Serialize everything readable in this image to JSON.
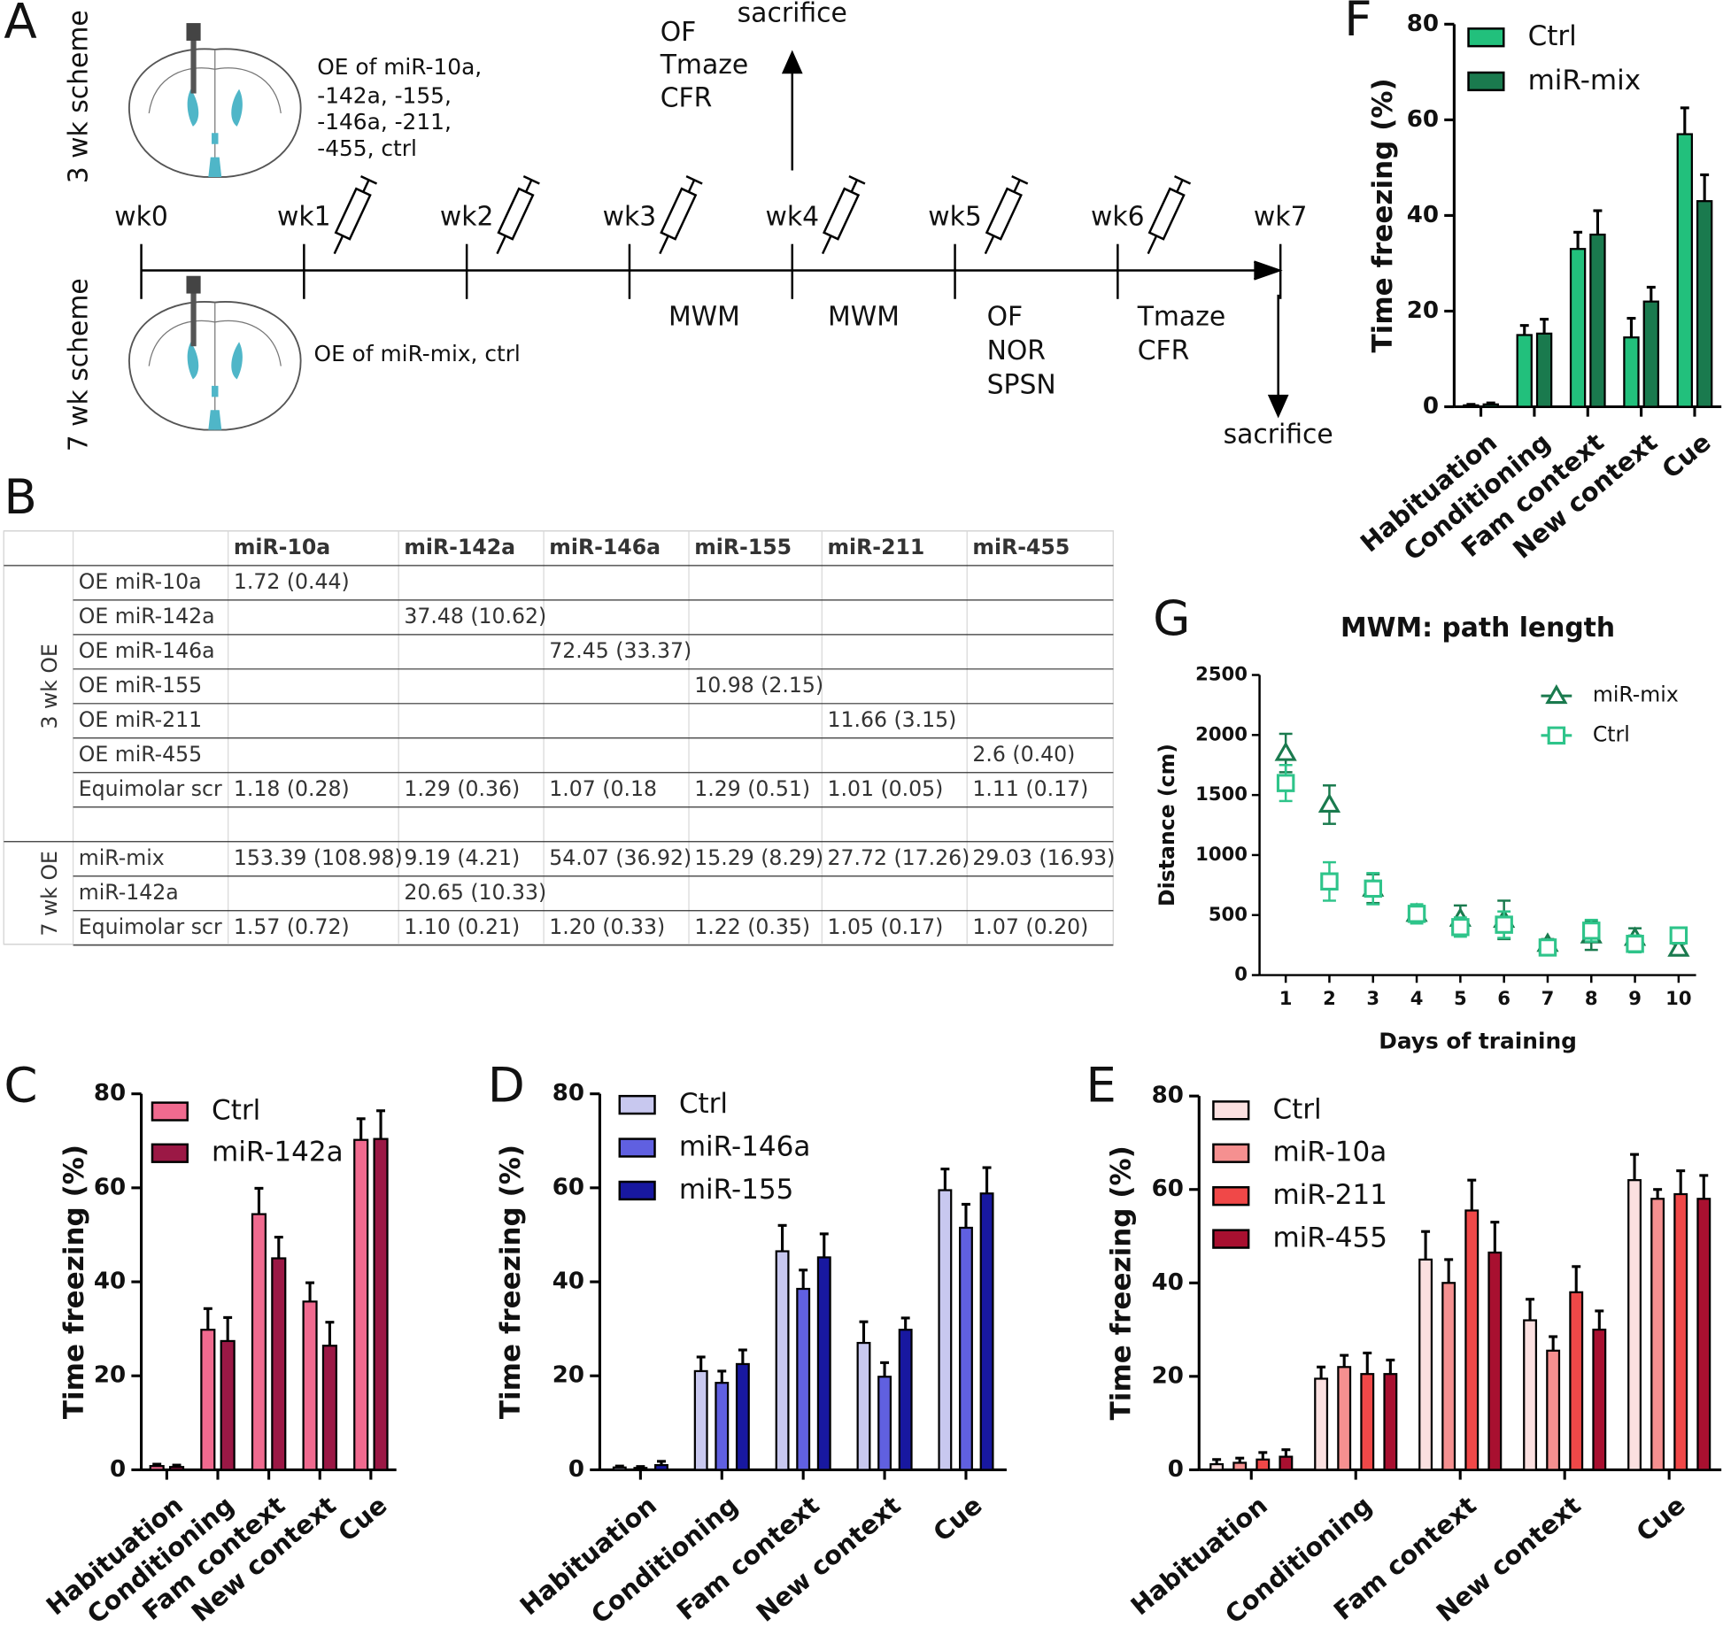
{
  "diagram": {
    "letter": "A",
    "schemes": [
      "3 wk scheme",
      "7 wk scheme"
    ],
    "oe_3wk": [
      "OE of miR-10a,",
      "-142a, -155,",
      "-146a, -211,",
      "-455, ctrl"
    ],
    "oe_7wk": "OE of miR-mix, ctrl",
    "weeks": [
      "wk0",
      "wk1",
      "wk2",
      "wk3",
      "wk4",
      "wk5",
      "wk6",
      "wk7"
    ],
    "above_wk4": [
      "OF",
      "Tmaze",
      "CFR"
    ],
    "sacrifice_top": "sacrifice",
    "below": [
      [
        "MWM"
      ],
      [
        "MWM"
      ],
      [
        "OF",
        "NOR",
        "SPSN"
      ],
      [
        "Tmaze",
        "CFR"
      ]
    ],
    "sacrifice_bottom": "sacrifice"
  },
  "table": {
    "letter": "B",
    "header": [
      "miR-10a",
      "miR-142a",
      "miR-146a",
      "miR-155",
      "miR-211",
      "miR-455"
    ],
    "groups": [
      {
        "label": "3 wk OE",
        "rows": [
          {
            "label": "OE miR-10a",
            "cells": [
              "1.72 (0.44)",
              null,
              null,
              null,
              null,
              null
            ]
          },
          {
            "label": "OE miR-142a",
            "cells": [
              null,
              "37.48 (10.62)",
              null,
              null,
              null,
              null
            ]
          },
          {
            "label": "OE miR-146a",
            "cells": [
              null,
              null,
              "72.45 (33.37)",
              null,
              null,
              null
            ]
          },
          {
            "label": "OE miR-155",
            "cells": [
              null,
              null,
              null,
              "10.98 (2.15)",
              null,
              null
            ]
          },
          {
            "label": "OE miR-211",
            "cells": [
              null,
              null,
              null,
              null,
              "11.66 (3.15)",
              null
            ]
          },
          {
            "label": "OE miR-455",
            "cells": [
              null,
              null,
              null,
              null,
              null,
              "2.6 (0.40)"
            ]
          },
          {
            "label": "Equimolar scr",
            "cells": [
              "1.18 (0.28)",
              "1.29 (0.36)",
              "1.07 (0.18",
              "1.29 (0.51)",
              "1.01 (0.05)",
              "1.11 (0.17)"
            ]
          }
        ]
      },
      {
        "label": "7 wk OE",
        "rows": [
          {
            "label": "miR-mix",
            "cells": [
              "153.39 (108.98)",
              "9.19 (4.21)",
              "54.07 (36.92)",
              "15.29 (8.29)",
              "27.72 (17.26)",
              "29.03 (16.93)"
            ]
          },
          {
            "label": "miR-142a",
            "cells": [
              null,
              "20.65 (10.33)",
              null,
              null,
              null,
              null
            ]
          },
          {
            "label": "Equimolar scr",
            "cells": [
              "1.57 (0.72)",
              "1.10 (0.21)",
              "1.20 (0.33)",
              "1.22 (0.35)",
              "1.05 (0.17)",
              "1.07 (0.20)"
            ]
          }
        ]
      }
    ]
  },
  "chart_data": [
    {
      "type": "bar",
      "letter": "F",
      "ylabel": "Time freezing (%)",
      "categories": [
        "Habituation",
        "Conditioning",
        "Fam context",
        "New context",
        "Cue"
      ],
      "ylim": [
        0,
        80
      ],
      "yticks": [
        0,
        20,
        40,
        60,
        80
      ],
      "series": [
        {
          "name": "Ctrl",
          "color": "#22c07c",
          "values": [
            0.3,
            15,
            33,
            14.5,
            57
          ],
          "errors": [
            0.2,
            2,
            3.5,
            4,
            5.5
          ]
        },
        {
          "name": "miR-mix",
          "color": "#1a7a4e",
          "values": [
            0.5,
            15.3,
            36,
            22,
            43
          ],
          "errors": [
            0.3,
            3,
            5,
            3,
            5.5
          ]
        }
      ]
    },
    {
      "type": "line",
      "letter": "G",
      "title": "MWM: path length",
      "xlabel": "Days of training",
      "ylabel": "Distance (cm)",
      "x": [
        1,
        2,
        3,
        4,
        5,
        6,
        7,
        8,
        9,
        10
      ],
      "xlim": [
        0.4,
        10.4
      ],
      "xticks": [
        1,
        2,
        3,
        4,
        5,
        6,
        7,
        8,
        9,
        10
      ],
      "ylim": [
        0,
        2500
      ],
      "yticks": [
        0,
        500,
        1000,
        1500,
        2000,
        2500
      ],
      "series": [
        {
          "name": "miR-mix",
          "color": "#1a7a4e",
          "marker": "triangle",
          "values": [
            1850,
            1420,
            720,
            510,
            470,
            460,
            260,
            330,
            310,
            220
          ],
          "errors": [
            160,
            160,
            120,
            70,
            110,
            160,
            40,
            120,
            80,
            40
          ]
        },
        {
          "name": "Ctrl",
          "color": "#2ec48a",
          "marker": "square",
          "values": [
            1600,
            780,
            720,
            510,
            400,
            420,
            230,
            370,
            260,
            330
          ],
          "errors": [
            150,
            160,
            130,
            80,
            80,
            110,
            40,
            90,
            70,
            60
          ]
        }
      ]
    },
    {
      "type": "bar",
      "letter": "C",
      "ylabel": "Time freezing (%)",
      "categories": [
        "Habituation",
        "Conditioning",
        "Fam context",
        "New context",
        "Cue"
      ],
      "ylim": [
        0,
        80
      ],
      "yticks": [
        0,
        20,
        40,
        60,
        80
      ],
      "series": [
        {
          "name": "Ctrl",
          "color": "#f06a8f",
          "values": [
            0.8,
            29.8,
            54.4,
            35.8,
            70.2
          ],
          "errors": [
            0.4,
            4.5,
            5.5,
            4,
            4.5
          ]
        },
        {
          "name": "miR-142a",
          "color": "#9b1845",
          "values": [
            0.6,
            27.4,
            45,
            26.4,
            70.4
          ],
          "errors": [
            0.4,
            5,
            4.5,
            5,
            6
          ]
        }
      ]
    },
    {
      "type": "bar",
      "letter": "D",
      "ylabel": "Time freezing (%)",
      "categories": [
        "Habituation",
        "Conditioning",
        "Fam context",
        "New context",
        "Cue"
      ],
      "ylim": [
        0,
        80
      ],
      "yticks": [
        0,
        20,
        40,
        60,
        80
      ],
      "series": [
        {
          "name": "Ctrl",
          "color": "#c8c8ef",
          "values": [
            0.5,
            21,
            46.5,
            27,
            59.5
          ],
          "errors": [
            0.3,
            3,
            5.5,
            4.5,
            4.5
          ]
        },
        {
          "name": "miR-146a",
          "color": "#6060e0",
          "values": [
            0.4,
            18.5,
            38.5,
            19.8,
            51.5
          ],
          "errors": [
            0.3,
            2.5,
            4,
            3,
            5
          ]
        },
        {
          "name": "miR-155",
          "color": "#1818a0",
          "values": [
            1,
            22.5,
            45.2,
            29.8,
            58.8
          ],
          "errors": [
            0.8,
            3,
            5,
            2.5,
            5.5
          ]
        }
      ]
    },
    {
      "type": "bar",
      "letter": "E",
      "ylabel": "Time freezing (%)",
      "categories": [
        "Habituation",
        "Conditioning",
        "Fam context",
        "New context",
        "Cue"
      ],
      "ylim": [
        0,
        80
      ],
      "yticks": [
        0,
        20,
        40,
        60,
        80
      ],
      "series": [
        {
          "name": "Ctrl",
          "color": "#fbe0e0",
          "values": [
            1.2,
            19.5,
            45,
            32,
            62
          ],
          "errors": [
            1,
            2.5,
            6,
            4.5,
            5.5
          ]
        },
        {
          "name": "miR-10a",
          "color": "#f59090",
          "values": [
            1.5,
            22,
            40,
            25.5,
            58
          ],
          "errors": [
            1,
            2.5,
            5,
            3,
            2
          ]
        },
        {
          "name": "miR-211",
          "color": "#f04848",
          "values": [
            2.2,
            20.5,
            55.5,
            38,
            59
          ],
          "errors": [
            1.5,
            4.5,
            6.5,
            5.5,
            5
          ]
        },
        {
          "name": "miR-455",
          "color": "#a81030",
          "values": [
            2.8,
            20.5,
            46.5,
            30,
            58
          ],
          "errors": [
            1.5,
            3,
            6.5,
            4,
            5
          ]
        }
      ]
    }
  ]
}
